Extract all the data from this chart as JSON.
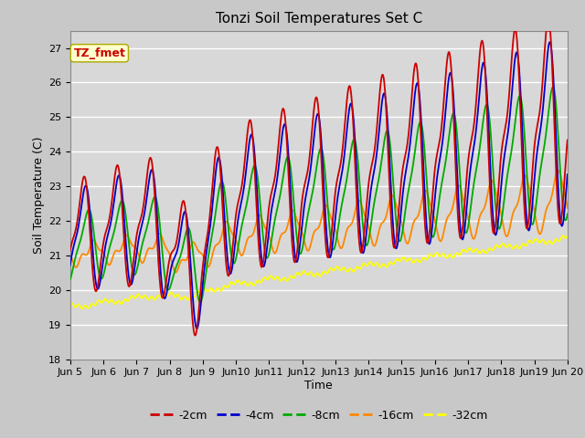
{
  "title": "Tonzi Soil Temperatures Set C",
  "xlabel": "Time",
  "ylabel": "Soil Temperature (C)",
  "ylim": [
    18.0,
    27.5
  ],
  "yticks": [
    18.0,
    19.0,
    20.0,
    21.0,
    22.0,
    23.0,
    24.0,
    25.0,
    26.0,
    27.0
  ],
  "fig_facecolor": "#c8c8c8",
  "plot_bg_color": "#d8d8d8",
  "series_colors": [
    "#cc0000",
    "#0000cc",
    "#00aa00",
    "#ff8800",
    "#ffff00"
  ],
  "series_labels": [
    "-2cm",
    "-4cm",
    "-8cm",
    "-16cm",
    "-32cm"
  ],
  "annotation_label": "TZ_fmet",
  "annotation_color": "#cc0000",
  "annotation_bg": "#ffffcc",
  "t_start": 5.0,
  "t_end": 20.0,
  "n_points": 1500,
  "xtick_vals": [
    5,
    6,
    7,
    8,
    9,
    10,
    11,
    12,
    13,
    14,
    15,
    16,
    17,
    18,
    19,
    20
  ],
  "xtick_labels": [
    "Jun 5",
    "Jun 6",
    "Jun 7",
    "Jun 8",
    "Jun 9",
    "Jun10",
    "Jun11",
    "Jun12",
    "Jun13",
    "Jun14",
    "Jun15",
    "Jun16",
    "Jun17",
    "Jun18",
    "Jun19",
    "Jun 20"
  ]
}
